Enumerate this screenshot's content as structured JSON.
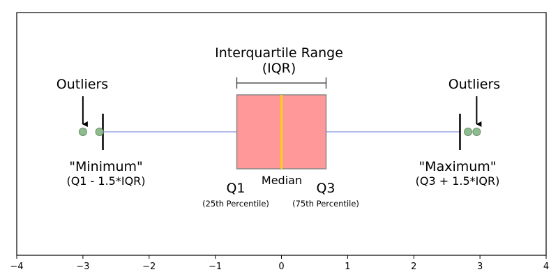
{
  "chart_data": {
    "type": "boxplot",
    "orientation": "horizontal",
    "xlim": [
      -4,
      4
    ],
    "x_ticks": [
      -4,
      -3,
      -2,
      -1,
      0,
      1,
      2,
      3,
      4
    ],
    "x_tick_labels": [
      "−4",
      "−3",
      "−2",
      "−1",
      "0",
      "1",
      "2",
      "3",
      "4"
    ],
    "box": {
      "q1": -0.6745,
      "median": 0,
      "q3": 0.6745,
      "whisker_low": -2.698,
      "whisker_high": 2.698,
      "outliers": [
        -3.0,
        -2.75,
        2.82,
        2.95
      ]
    },
    "colors": {
      "box_fill": "#ff9999",
      "box_edge": "#888888",
      "median": "#ffd700",
      "whisker": "#9aa3e6",
      "cap": "#000000",
      "outlier_fill": "#8fbc8f",
      "outlier_edge": "#6a8f6a"
    },
    "grid": false,
    "annotations": {
      "iqr_title": "Interquartile Range",
      "iqr_sub": "(IQR)",
      "outliers_left": "Outliers",
      "outliers_right": "Outliers",
      "minimum": "\"Minimum\"",
      "minimum_formula": "(Q1 - 1.5*IQR)",
      "maximum": "\"Maximum\"",
      "maximum_formula": "(Q3 + 1.5*IQR)",
      "q1": "Q1",
      "q1_sub": "(25th Percentile)",
      "median": "Median",
      "q3": "Q3",
      "q3_sub": "(75th Percentile)"
    }
  }
}
